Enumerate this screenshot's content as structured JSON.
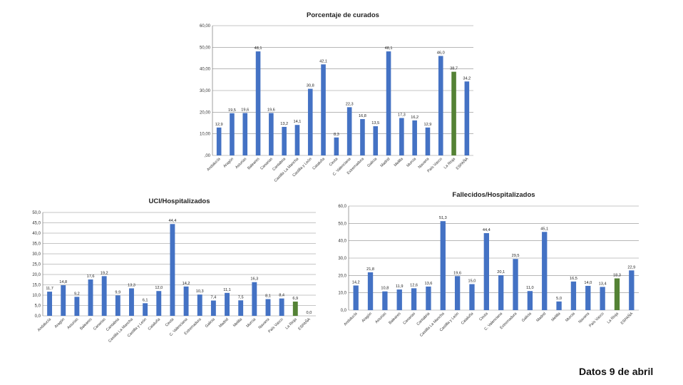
{
  "footer": "Datos 9 de abril",
  "colors": {
    "bar": "#4472C4",
    "highlight": "#548235",
    "grid": "#8c8c8c"
  },
  "chart_data": [
    {
      "type": "bar",
      "title": "Porcentaje de curados",
      "categories": [
        "Andalucía",
        "Aragón",
        "Asturias",
        "Baleares",
        "Canarias",
        "Cantabria",
        "Castilla La Mancha",
        "Castilla y León",
        "Cataluña",
        "Ceuta",
        "C. Valenciana",
        "Extremadura",
        "Galicia",
        "Madrid",
        "Melilla",
        "Murcia",
        "Navarra",
        "País Vasco",
        "La Rioja",
        "ESPAÑA"
      ],
      "values": [
        12.9,
        19.5,
        19.6,
        48.1,
        19.6,
        13.2,
        14.1,
        30.8,
        42.1,
        8.3,
        22.3,
        16.8,
        13.5,
        48.1,
        17.3,
        16.2,
        12.9,
        46.0,
        38.7,
        34.2
      ],
      "value_labels": [
        "12,9",
        "19,5",
        "19,6",
        "48,1",
        "19,6",
        "13,2",
        "14,1",
        "30,8",
        "42,1",
        "8,3",
        "22,3",
        "16,8",
        "13,5",
        "48,1",
        "17,3",
        "16,2",
        "12,9",
        "46,0",
        "38,7",
        "34,2"
      ],
      "highlight_index": 18,
      "ylim": [
        0,
        60
      ],
      "yticks": [
        ",00",
        "10,00",
        "20,00",
        "30,00",
        "40,00",
        "50,00",
        "60,00"
      ],
      "grid": true
    },
    {
      "type": "bar",
      "title": "UCI/Hospitalizados",
      "categories": [
        "Andalucía",
        "Aragón",
        "Asturias",
        "Baleares",
        "Canarias",
        "Cantabria",
        "Castilla La Mancha",
        "Castilla y León",
        "Cataluña",
        "Ceuta",
        "C. Valenciana",
        "Extremadura",
        "Galicia",
        "Madrid",
        "Melilla",
        "Murcia",
        "Navarra",
        "País Vasco",
        "La Rioja",
        "ESPAÑA"
      ],
      "values": [
        11.7,
        14.8,
        9.2,
        17.6,
        19.2,
        9.9,
        13.3,
        6.1,
        12.0,
        44.4,
        14.2,
        10.3,
        7.4,
        11.1,
        7.5,
        16.3,
        8.1,
        8.4,
        6.9,
        0.0
      ],
      "value_labels": [
        "11,7",
        "14,8",
        "9,2",
        "17,6",
        "19,2",
        "9,9",
        "13,3",
        "6,1",
        "12,0",
        "44,4",
        "14,2",
        "10,3",
        "7,4",
        "11,1",
        "7,5",
        "16,3",
        "8,1",
        "8,4",
        "6,9",
        "0,0"
      ],
      "highlight_index": 18,
      "ylim": [
        0,
        50
      ],
      "yticks": [
        "0,0",
        "5,0",
        "10,0",
        "15,0",
        "20,0",
        "25,0",
        "30,0",
        "35,0",
        "40,0",
        "45,0",
        "50,0"
      ],
      "grid": true
    },
    {
      "type": "bar",
      "title": "Fallecidos/Hospitalizados",
      "categories": [
        "Andalucía",
        "Aragón",
        "Asturias",
        "Baleares",
        "Canarias",
        "Cantabria",
        "Castilla La Mancha",
        "Castilla y León",
        "Cataluña",
        "Ceuta",
        "C. Valenciana",
        "Extremadura",
        "Galicia",
        "Madrid",
        "Melilla",
        "Murcia",
        "Navarra",
        "País Vasco",
        "La Rioja",
        "ESPAÑA"
      ],
      "values": [
        14.2,
        21.8,
        10.8,
        11.9,
        12.6,
        13.6,
        51.3,
        19.6,
        15.0,
        44.4,
        20.1,
        29.5,
        11.0,
        45.1,
        5.0,
        16.5,
        14.0,
        13.4,
        18.3,
        22.9
      ],
      "value_labels": [
        "14,2",
        "21,8",
        "10,8",
        "11,9",
        "12,6",
        "13,6",
        "51,3",
        "19,6",
        "15,0",
        "44,4",
        "20,1",
        "29,5",
        "11,0",
        "45,1",
        "5,0",
        "16,5",
        "14,0",
        "13,4",
        "18,3",
        "22,9"
      ],
      "highlight_index": 18,
      "ylim": [
        0,
        60
      ],
      "yticks": [
        "0,0",
        "10,0",
        "20,0",
        "30,0",
        "40,0",
        "50,0",
        "60,0"
      ],
      "grid": true
    }
  ]
}
